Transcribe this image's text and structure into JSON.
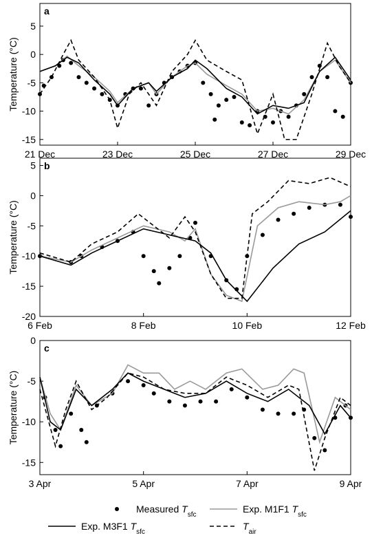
{
  "chart_data": [
    {
      "type": "line",
      "panel_label": "a",
      "y_label": "Temperature (°C)",
      "xlim": [
        21,
        29
      ],
      "xticks": [
        {
          "value": 21,
          "label": "21 Dec"
        },
        {
          "value": 23,
          "label": "23 Dec"
        },
        {
          "value": 25,
          "label": "25 Dec"
        },
        {
          "value": 27,
          "label": "27 Dec"
        },
        {
          "value": 29,
          "label": "29 Dec"
        }
      ],
      "ylim": [
        -16,
        9
      ],
      "yticks": [
        -15,
        -10,
        -5,
        0,
        5
      ],
      "series": [
        {
          "color": "#000000",
          "style": "dots",
          "x": [
            21.0,
            21.1,
            21.3,
            21.5,
            21.6,
            21.8,
            22.0,
            22.2,
            22.4,
            22.6,
            22.8,
            23.0,
            23.2,
            23.4,
            23.6,
            23.8,
            24.0,
            24.2,
            24.4,
            24.6,
            24.8,
            25.0,
            25.2,
            25.4,
            25.5,
            25.6,
            25.8,
            26.0,
            26.2,
            26.4,
            26.6,
            26.8,
            27.0,
            27.2,
            27.4,
            27.6,
            27.8,
            28.0,
            28.2,
            28.4,
            28.6,
            28.8,
            29.0
          ],
          "values": [
            -7,
            -5.5,
            -4,
            -2,
            -1,
            -1.5,
            -4,
            -5,
            -6,
            -7,
            -8,
            -9,
            -7,
            -6,
            -6,
            -9,
            -7,
            -5,
            -4,
            -3,
            -2,
            -1.5,
            -5,
            -7,
            -11.5,
            -9,
            -8,
            -7.5,
            -12,
            -12.5,
            -10,
            -11,
            -12,
            -10,
            -11,
            -9,
            -7,
            -4,
            -2,
            -4,
            -10,
            -11,
            -5
          ]
        },
        {
          "color": "#999999",
          "style": "solid",
          "x": [
            21,
            21.4,
            21.7,
            22.0,
            22.4,
            22.8,
            23.0,
            23.4,
            23.8,
            24.0,
            24.4,
            24.8,
            25.0,
            25.3,
            25.8,
            26.2,
            26.6,
            27.0,
            27.4,
            27.8,
            28.2,
            28.6,
            29.0
          ],
          "values": [
            -3,
            -2,
            -0.3,
            -2,
            -4,
            -6.5,
            -8.5,
            -6,
            -5,
            -7,
            -4,
            -2,
            -1.5,
            -3.5,
            -5.5,
            -7,
            -10,
            -9.5,
            -10.5,
            -8,
            -3,
            -1,
            -5
          ]
        },
        {
          "color": "#000000",
          "style": "solid",
          "x": [
            21,
            21.4,
            21.7,
            22.0,
            22.4,
            22.8,
            23.0,
            23.4,
            23.8,
            24.0,
            24.4,
            24.8,
            25.0,
            25.3,
            25.8,
            26.2,
            26.6,
            27.0,
            27.4,
            27.8,
            28.2,
            28.6,
            29.0
          ],
          "values": [
            -3,
            -2,
            -0.5,
            -1.5,
            -4.5,
            -7,
            -9,
            -6,
            -5,
            -6.5,
            -4,
            -2.5,
            -1,
            -2.5,
            -6,
            -7.5,
            -10.5,
            -9,
            -9.5,
            -8.5,
            -3,
            -0.5,
            -4.5
          ]
        },
        {
          "color": "#000000",
          "style": "dashed",
          "x": [
            21,
            21.3,
            21.6,
            21.8,
            22.0,
            22.4,
            22.8,
            23.0,
            23.3,
            23.6,
            24.0,
            24.4,
            24.8,
            25.0,
            25.3,
            25.8,
            26.2,
            26.6,
            27.0,
            27.3,
            27.6,
            28.0,
            28.4,
            28.7,
            29.0
          ],
          "values": [
            -7,
            -4,
            0,
            2.5,
            -1,
            -4,
            -8,
            -13,
            -7,
            -5,
            -9,
            -3,
            0,
            2.5,
            -1,
            -3,
            -4.5,
            -14,
            -7,
            -15,
            -15,
            -7,
            2,
            -2,
            -5
          ]
        }
      ]
    },
    {
      "type": "line",
      "panel_label": "b",
      "y_label": "Temperature (°C)",
      "xlim": [
        6,
        12
      ],
      "xticks": [
        {
          "value": 6,
          "label": "6 Feb"
        },
        {
          "value": 8,
          "label": "8 Feb"
        },
        {
          "value": 10,
          "label": "10 Feb"
        },
        {
          "value": 12,
          "label": "12 Feb"
        }
      ],
      "ylim": [
        -20,
        6.2
      ],
      "yticks": [
        -20,
        -15,
        -10,
        -5,
        0,
        5
      ],
      "series": [
        {
          "color": "#000000",
          "style": "dots",
          "x": [
            6.0,
            6.6,
            6.8,
            7.2,
            7.5,
            7.8,
            8.0,
            8.2,
            8.3,
            8.5,
            8.7,
            8.9,
            9.0,
            9.3,
            9.6,
            9.8,
            10.0,
            10.3,
            10.6,
            10.9,
            11.2,
            11.5,
            11.8,
            12.0
          ],
          "values": [
            -10,
            -11,
            -10,
            -8.5,
            -7.5,
            -6,
            -10,
            -12.5,
            -14.5,
            -12,
            -10,
            -7,
            -4.5,
            -10,
            -14,
            -15.5,
            -10,
            -6.5,
            -4,
            -3,
            -2,
            -1.5,
            -1.5,
            -3.5
          ]
        },
        {
          "color": "#999999",
          "style": "solid",
          "x": [
            6,
            6.6,
            7.0,
            7.5,
            8.0,
            8.5,
            8.8,
            9.0,
            9.3,
            9.6,
            9.9,
            10.2,
            10.6,
            11.0,
            11.5,
            11.8,
            12.0
          ],
          "values": [
            -10,
            -11,
            -9,
            -7,
            -5,
            -6,
            -7.5,
            -5.5,
            -13,
            -16.5,
            -17.5,
            -5,
            -2,
            -1,
            -1.5,
            -1,
            0
          ]
        },
        {
          "color": "#000000",
          "style": "solid",
          "x": [
            6,
            6.6,
            7.0,
            7.5,
            8.0,
            8.5,
            9.0,
            9.3,
            9.6,
            10.0,
            10.5,
            11.0,
            11.5,
            12.0
          ],
          "values": [
            -10,
            -11.5,
            -9.5,
            -7.5,
            -5.5,
            -6.5,
            -7.5,
            -9.5,
            -14,
            -17.5,
            -12,
            -8,
            -6,
            -2.5
          ]
        },
        {
          "color": "#000000",
          "style": "dashed",
          "x": [
            6,
            6.6,
            7.0,
            7.5,
            7.9,
            8.2,
            8.5,
            8.8,
            9.0,
            9.3,
            9.6,
            9.9,
            10.1,
            10.4,
            10.8,
            11.2,
            11.6,
            12.0
          ],
          "values": [
            -9.5,
            -11,
            -8,
            -6,
            -3,
            -5,
            -7,
            -3.5,
            -6,
            -13,
            -17,
            -17,
            -3,
            -1,
            2.5,
            2,
            3,
            1.5
          ]
        }
      ]
    },
    {
      "type": "line",
      "panel_label": "c",
      "y_label": "Temperature (°C)",
      "xlim": [
        3,
        9
      ],
      "xticks": [
        {
          "value": 3,
          "label": "3 Apr"
        },
        {
          "value": 5,
          "label": "5 Apr"
        },
        {
          "value": 7,
          "label": "7 Apr"
        },
        {
          "value": 9,
          "label": "9 Apr"
        }
      ],
      "ylim": [
        -16.5,
        0
      ],
      "yticks": [
        -15,
        -10,
        -5,
        0
      ],
      "series": [
        {
          "color": "#000000",
          "style": "dots",
          "x": [
            3.1,
            3.3,
            3.4,
            3.6,
            3.8,
            3.9,
            4.1,
            4.4,
            4.7,
            5.0,
            5.2,
            5.5,
            5.8,
            6.1,
            6.4,
            6.7,
            7.0,
            7.3,
            7.6,
            7.9,
            8.1,
            8.3,
            8.5,
            8.7,
            8.9,
            9.0
          ],
          "values": [
            -7,
            -11,
            -13,
            -9,
            -11,
            -12.5,
            -8,
            -6.5,
            -5,
            -5.5,
            -6.5,
            -7.5,
            -8,
            -7.5,
            -7.5,
            -6,
            -7,
            -8.5,
            -9,
            -9,
            -8.5,
            -12,
            -13.5,
            -9.5,
            -8,
            -9.5
          ]
        },
        {
          "color": "#999999",
          "style": "solid",
          "x": [
            3,
            3.2,
            3.4,
            3.7,
            4.0,
            4.4,
            4.7,
            5.0,
            5.3,
            5.6,
            5.9,
            6.2,
            6.6,
            6.9,
            7.3,
            7.6,
            7.9,
            8.1,
            8.4,
            8.7,
            9.0
          ],
          "values": [
            -4.5,
            -9,
            -11,
            -5.5,
            -8,
            -6.5,
            -3,
            -4,
            -4,
            -6,
            -5,
            -6,
            -4,
            -3.5,
            -6,
            -5.5,
            -3.5,
            -4,
            -12.5,
            -7,
            -8.5
          ]
        },
        {
          "color": "#000000",
          "style": "solid",
          "x": [
            3,
            3.2,
            3.4,
            3.7,
            4.0,
            4.4,
            4.7,
            5.0,
            5.4,
            5.8,
            6.2,
            6.6,
            7.0,
            7.4,
            7.8,
            8.2,
            8.5,
            8.8,
            9.0
          ],
          "values": [
            -4.5,
            -10,
            -11,
            -6,
            -8,
            -6,
            -4,
            -5,
            -6,
            -7,
            -6.5,
            -5,
            -6.5,
            -7.5,
            -6,
            -8,
            -11.5,
            -8,
            -9.5
          ]
        },
        {
          "color": "#000000",
          "style": "dashed",
          "x": [
            3,
            3.3,
            3.5,
            3.7,
            4.0,
            4.3,
            4.7,
            5.0,
            5.4,
            5.8,
            6.2,
            6.6,
            7.0,
            7.4,
            7.8,
            8.0,
            8.3,
            8.5,
            8.8,
            9.0
          ],
          "values": [
            -6,
            -13,
            -8.5,
            -5,
            -8.5,
            -7,
            -4,
            -4.5,
            -6,
            -6.5,
            -6.5,
            -4.5,
            -5.5,
            -7,
            -5.5,
            -6,
            -16,
            -12,
            -7,
            -8
          ]
        }
      ]
    }
  ],
  "legend": [
    {
      "label": "Measured ",
      "var": "T",
      "sub": "sfc"
    },
    {
      "label": "Exp. M1F1 ",
      "var": "T",
      "sub": "sfc"
    },
    {
      "label": "Exp. M3F1 ",
      "var": "T",
      "sub": "sfc"
    },
    {
      "label": "",
      "var": "T",
      "sub": "air"
    }
  ]
}
